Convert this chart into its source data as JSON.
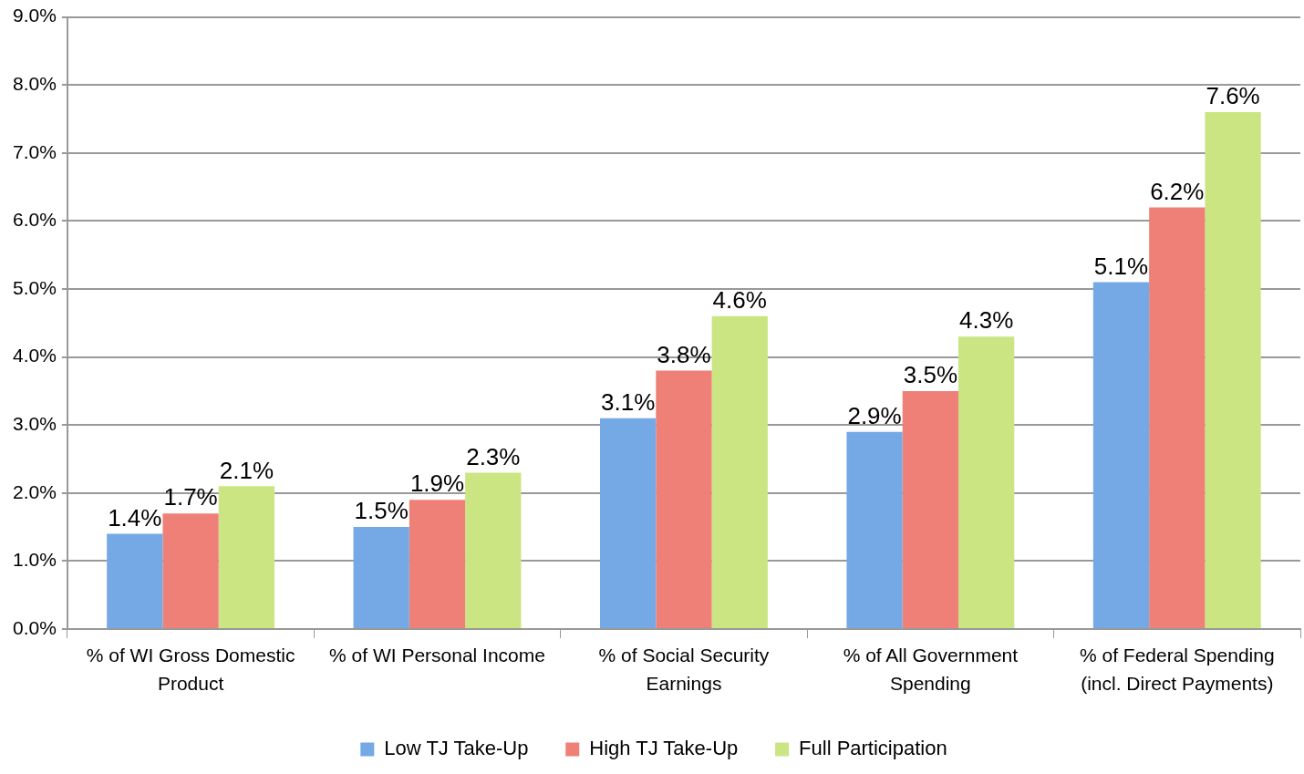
{
  "chart_data": {
    "type": "bar",
    "categories": [
      "% of WI Gross Domestic Product",
      "% of WI Personal Income",
      "% of Social Security Earnings",
      "% of All Government Spending",
      "% of Federal Spending (incl. Direct Payments)"
    ],
    "series": [
      {
        "name": "Low TJ Take-Up",
        "color": "#74a9e6",
        "values": [
          1.4,
          1.5,
          3.1,
          2.9,
          5.1
        ],
        "value_labels": [
          "1.4%",
          "1.5%",
          "3.1%",
          "2.9%",
          "5.1%"
        ]
      },
      {
        "name": "High TJ Take-Up",
        "color": "#ee8078",
        "values": [
          1.7,
          1.9,
          3.8,
          3.5,
          6.2
        ],
        "value_labels": [
          "1.7%",
          "1.9%",
          "3.8%",
          "3.5%",
          "6.2%"
        ]
      },
      {
        "name": "Full Participation",
        "color": "#cbe582",
        "values": [
          2.1,
          2.3,
          4.6,
          4.3,
          7.6
        ],
        "value_labels": [
          "2.1%",
          "2.3%",
          "4.6%",
          "4.3%",
          "7.6%"
        ]
      }
    ],
    "ylim": [
      0,
      9
    ],
    "yticks": [
      {
        "value": 0,
        "label": "0.0%"
      },
      {
        "value": 1,
        "label": "1.0%"
      },
      {
        "value": 2,
        "label": "2.0%"
      },
      {
        "value": 3,
        "label": "3.0%"
      },
      {
        "value": 4,
        "label": "4.0%"
      },
      {
        "value": 5,
        "label": "5.0%"
      },
      {
        "value": 6,
        "label": "6.0%"
      },
      {
        "value": 7,
        "label": "7.0%"
      },
      {
        "value": 8,
        "label": "8.0%"
      },
      {
        "value": 9,
        "label": "9.0%"
      }
    ],
    "grid": "y",
    "legend": "bottom"
  }
}
